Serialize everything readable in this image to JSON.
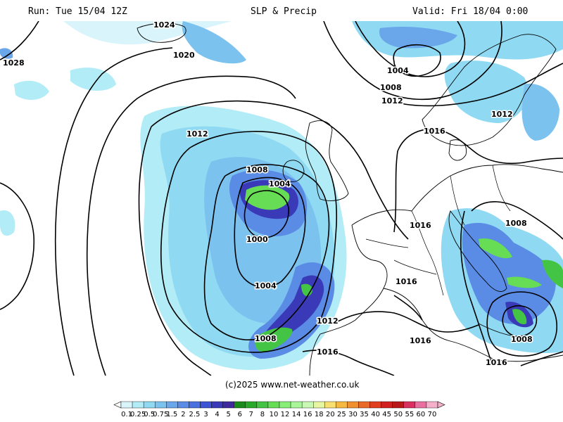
{
  "header": {
    "run": "Run: Tue 15/04 12Z",
    "title": "SLP & Precip",
    "valid": "Valid: Fri 18/04 0:00"
  },
  "copyright": "(c)2025 www.net-weather.co.uk",
  "map": {
    "isobar_labels": [
      "1028",
      "1024",
      "1020",
      "1012",
      "1008",
      "1004",
      "1000",
      "1004",
      "1008",
      "1012",
      "1016",
      "1004",
      "1008",
      "1012",
      "1012",
      "1016",
      "1016",
      "1016",
      "1008",
      "1016",
      "1008",
      "1016"
    ]
  },
  "colorbar": {
    "labels": [
      "0.1",
      "0.25",
      "0.5",
      "0.75",
      "1.5",
      "2",
      "2.5",
      "3",
      "4",
      "5",
      "6",
      "7",
      "8",
      "10",
      "12",
      "14",
      "16",
      "18",
      "20",
      "25",
      "30",
      "35",
      "40",
      "45",
      "50",
      "55",
      "60",
      "70"
    ],
    "colors": [
      "#d9f5fb",
      "#b2ecf6",
      "#8fdaf2",
      "#7cc2ee",
      "#6aa6ea",
      "#5a8ce6",
      "#4a70e0",
      "#3d54d4",
      "#3a3ab8",
      "#3f2a9c",
      "#1a8a1a",
      "#2aa82a",
      "#44c444",
      "#66dd55",
      "#88ee77",
      "#a8f59a",
      "#c8f8b4",
      "#e6f5a0",
      "#f8e070",
      "#f5b840",
      "#f09030",
      "#e86a28",
      "#e04020",
      "#d02020",
      "#b81818",
      "#d83060",
      "#e870a0",
      "#f4b0c8"
    ]
  }
}
